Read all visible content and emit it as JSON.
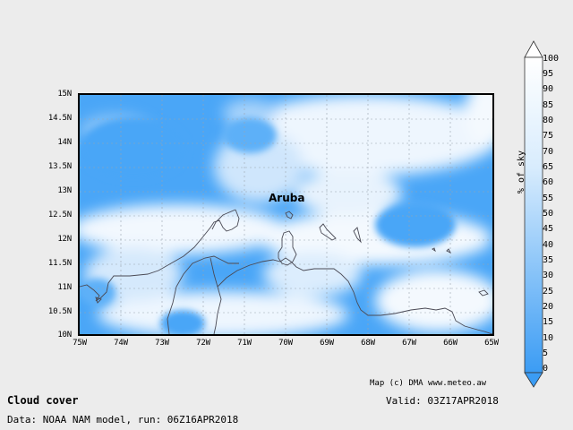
{
  "map": {
    "place_label": "Aruba",
    "lat_labels": [
      "15N",
      "14.5N",
      "14N",
      "13.5N",
      "13N",
      "12.5N",
      "12N",
      "11.5N",
      "11N",
      "10.5N",
      "10N"
    ],
    "lon_labels": [
      "75W",
      "74W",
      "73W",
      "72W",
      "71W",
      "70W",
      "69W",
      "68W",
      "67W",
      "66W",
      "65W"
    ],
    "credit": "Map (c) DMA www.meteo.aw"
  },
  "legend": {
    "ticks": [
      "100",
      "95",
      "90",
      "85",
      "80",
      "75",
      "70",
      "65",
      "60",
      "55",
      "50",
      "45",
      "40",
      "35",
      "30",
      "25",
      "20",
      "15",
      "10",
      "5",
      "0"
    ],
    "unit": "% of sky",
    "color_high": "#ffffff",
    "color_low": "#3b9cf4"
  },
  "footer": {
    "title": "Cloud cover",
    "valid": "Valid: 03Z17APR2018",
    "data_source": "Data: NOAA NAM model, run: 06Z16APR2018"
  },
  "colors": {
    "background": "#ececec",
    "clear_sky": "#4aa6f7",
    "cloud": "#f4f9fe"
  }
}
